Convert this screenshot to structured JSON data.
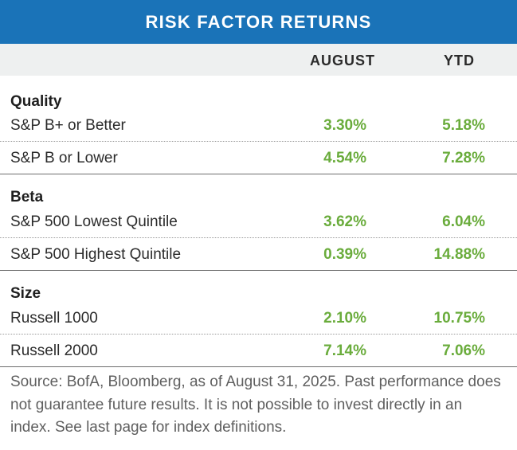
{
  "chart_data": {
    "type": "table",
    "title": "RISK FACTOR RETURNS",
    "columns": [
      "AUGUST",
      "YTD"
    ],
    "groups": [
      {
        "name": "Quality",
        "rows": [
          {
            "label": "S&P B+ or Better",
            "august": "3.30%",
            "ytd": "5.18%"
          },
          {
            "label": "S&P B or Lower",
            "august": "4.54%",
            "ytd": "7.28%"
          }
        ]
      },
      {
        "name": "Beta",
        "rows": [
          {
            "label": "S&P 500 Lowest Quintile",
            "august": "3.62%",
            "ytd": "6.04%"
          },
          {
            "label": "S&P 500 Highest Quintile",
            "august": "0.39%",
            "ytd": "14.88%"
          }
        ]
      },
      {
        "name": "Size",
        "rows": [
          {
            "label": "Russell 1000",
            "august": "2.10%",
            "ytd": "10.75%"
          },
          {
            "label": "Russell 2000",
            "august": "7.14%",
            "ytd": "7.06%"
          }
        ]
      }
    ],
    "source": "Source: BofA, Bloomberg, as of August 31, 2025. Past performance does not guarantee future results. It is not possible to invest directly in an index. See last page for index definitions."
  },
  "colors": {
    "header_bg": "#1a73b8",
    "subheader_bg": "#eef0f0",
    "value_green": "#6aac3c"
  }
}
